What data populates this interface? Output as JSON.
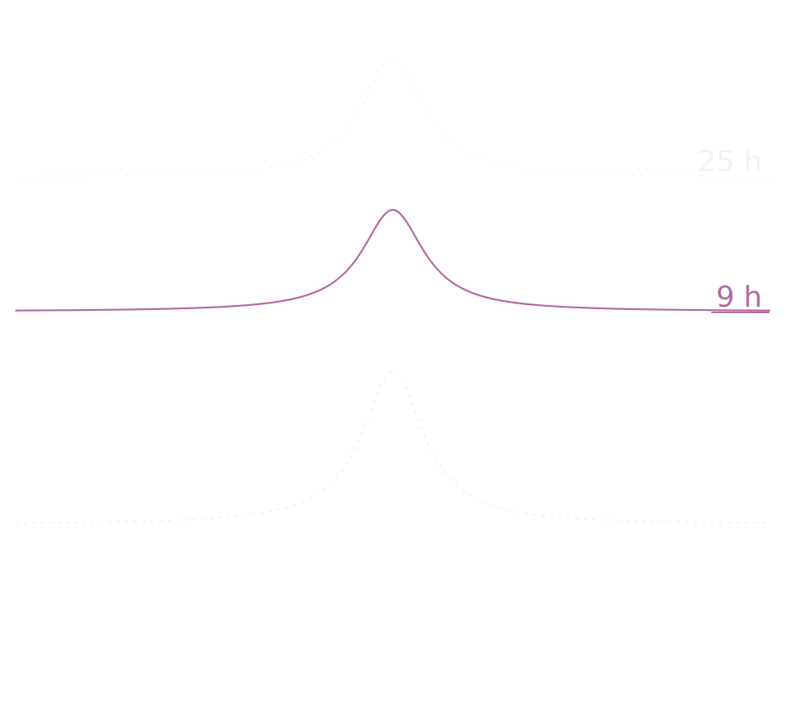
{
  "chart_data": {
    "type": "line",
    "x_range": [
      -1,
      1
    ],
    "grid": false,
    "legend": "none",
    "series": [
      {
        "name": "25 h",
        "color": "#ede3ec",
        "opacity": 0.55,
        "peak_center": 0.0,
        "peak_height": 1.0,
        "half_width": 0.1,
        "label_visible": true,
        "baseline_visible": false
      },
      {
        "name": "9 h",
        "color": "#b26aa0",
        "opacity": 1.0,
        "peak_center": 0.0,
        "peak_height": 1.0,
        "half_width": 0.1,
        "label_visible": true,
        "baseline_visible": true
      },
      {
        "name": "",
        "color": "#e6d2e1",
        "opacity": 0.5,
        "peak_center": 0.0,
        "peak_height": 1.0,
        "half_width": 0.1,
        "label_visible": false,
        "baseline_visible": false
      }
    ]
  }
}
